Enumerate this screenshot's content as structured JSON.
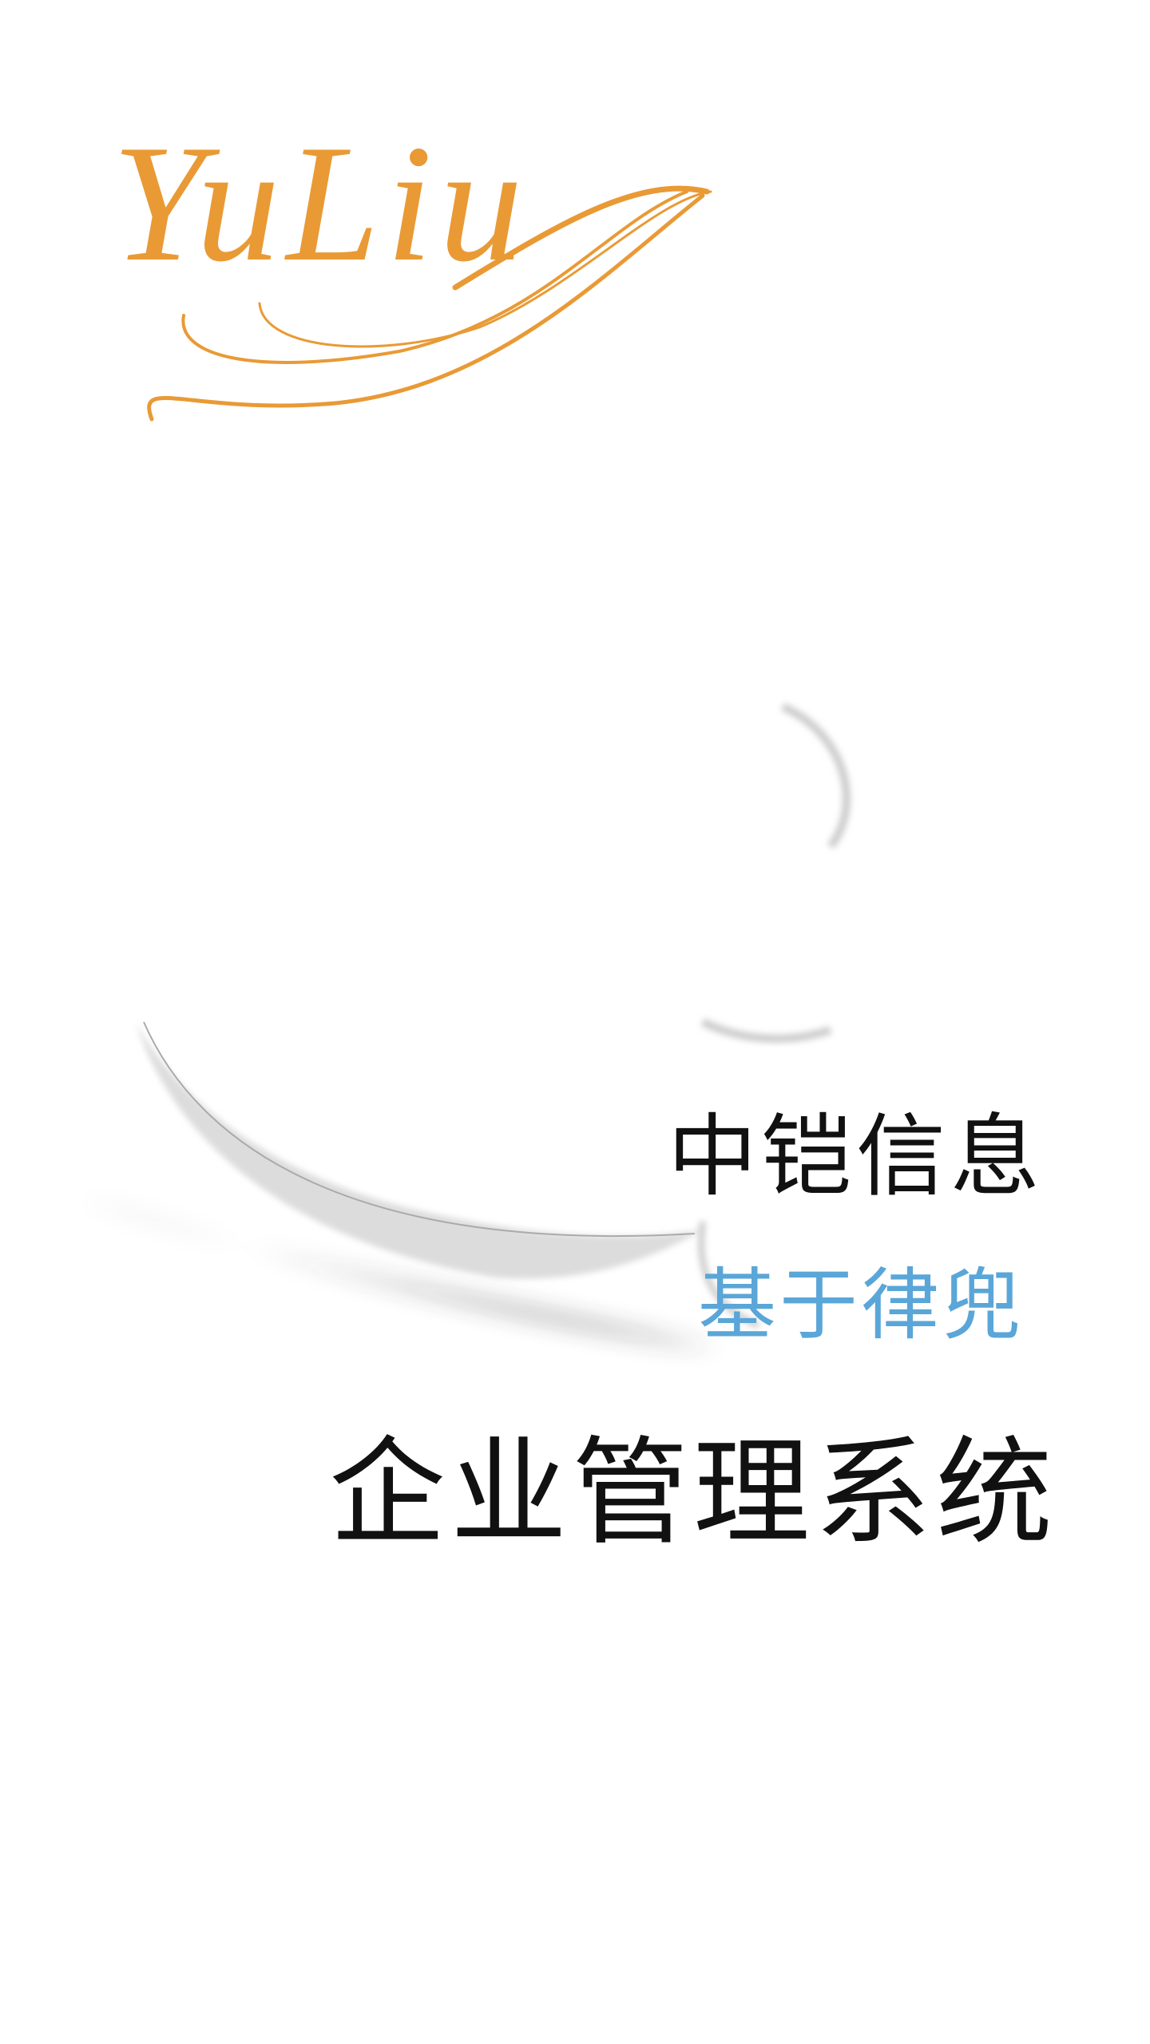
{
  "logo": {
    "text": "YuLiu"
  },
  "company": "中铠信息",
  "subtitle": "基于律兜",
  "product": "企业管理系统"
}
